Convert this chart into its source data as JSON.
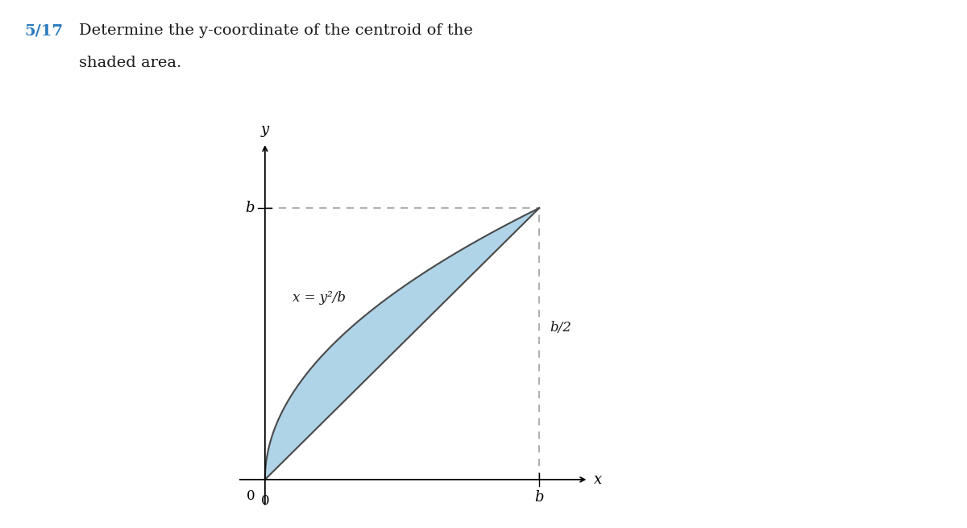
{
  "title_number": "5/17",
  "title_color": "#2b7bbf",
  "body_text_color": "#1a1a1a",
  "curve_label": "x = y²/b",
  "right_label": "b/2",
  "axis_label_x": "x",
  "axis_label_y": "y",
  "tick_label_b_x": "b",
  "tick_label_b_y": "b",
  "tick_label_0x": "0",
  "tick_label_0y": "0",
  "shaded_color": "#afd4e8",
  "shaded_edge_color": "#4a4a4a",
  "dashed_color": "#999999",
  "background_color": "#ffffff",
  "figsize": [
    12.0,
    6.55
  ],
  "dpi": 100,
  "title_line1": "Determine the y-coordinate of the centroid of the",
  "title_line2": "shaded area."
}
